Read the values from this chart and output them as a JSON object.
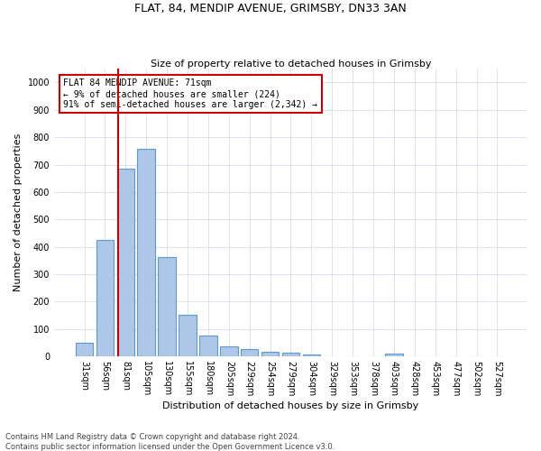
{
  "title1": "FLAT, 84, MENDIP AVENUE, GRIMSBY, DN33 3AN",
  "title2": "Size of property relative to detached houses in Grimsby",
  "xlabel": "Distribution of detached houses by size in Grimsby",
  "ylabel": "Number of detached properties",
  "footer1": "Contains HM Land Registry data © Crown copyright and database right 2024.",
  "footer2": "Contains public sector information licensed under the Open Government Licence v3.0.",
  "categories": [
    "31sqm",
    "56sqm",
    "81sqm",
    "105sqm",
    "130sqm",
    "155sqm",
    "180sqm",
    "205sqm",
    "229sqm",
    "254sqm",
    "279sqm",
    "304sqm",
    "329sqm",
    "353sqm",
    "378sqm",
    "403sqm",
    "428sqm",
    "453sqm",
    "477sqm",
    "502sqm",
    "527sqm"
  ],
  "values": [
    50,
    425,
    685,
    757,
    362,
    152,
    76,
    36,
    27,
    18,
    15,
    8,
    0,
    0,
    0,
    10,
    0,
    0,
    0,
    0,
    0
  ],
  "bar_color": "#aec6e8",
  "bar_edge_color": "#5b9bd5",
  "vline_color": "#cc0000",
  "annotation_text": "FLAT 84 MENDIP AVENUE: 71sqm\n← 9% of detached houses are smaller (224)\n91% of semi-detached houses are larger (2,342) →",
  "annotation_box_color": "#ffffff",
  "annotation_box_edge_color": "#cc0000",
  "ylim": [
    0,
    1050
  ],
  "yticks": [
    0,
    100,
    200,
    300,
    400,
    500,
    600,
    700,
    800,
    900,
    1000
  ],
  "background_color": "#ffffff",
  "grid_color": "#d0d8e8",
  "title1_fontsize": 9,
  "title2_fontsize": 8,
  "ylabel_fontsize": 8,
  "xlabel_fontsize": 8,
  "tick_fontsize": 7,
  "footer_fontsize": 6,
  "annotation_fontsize": 7
}
